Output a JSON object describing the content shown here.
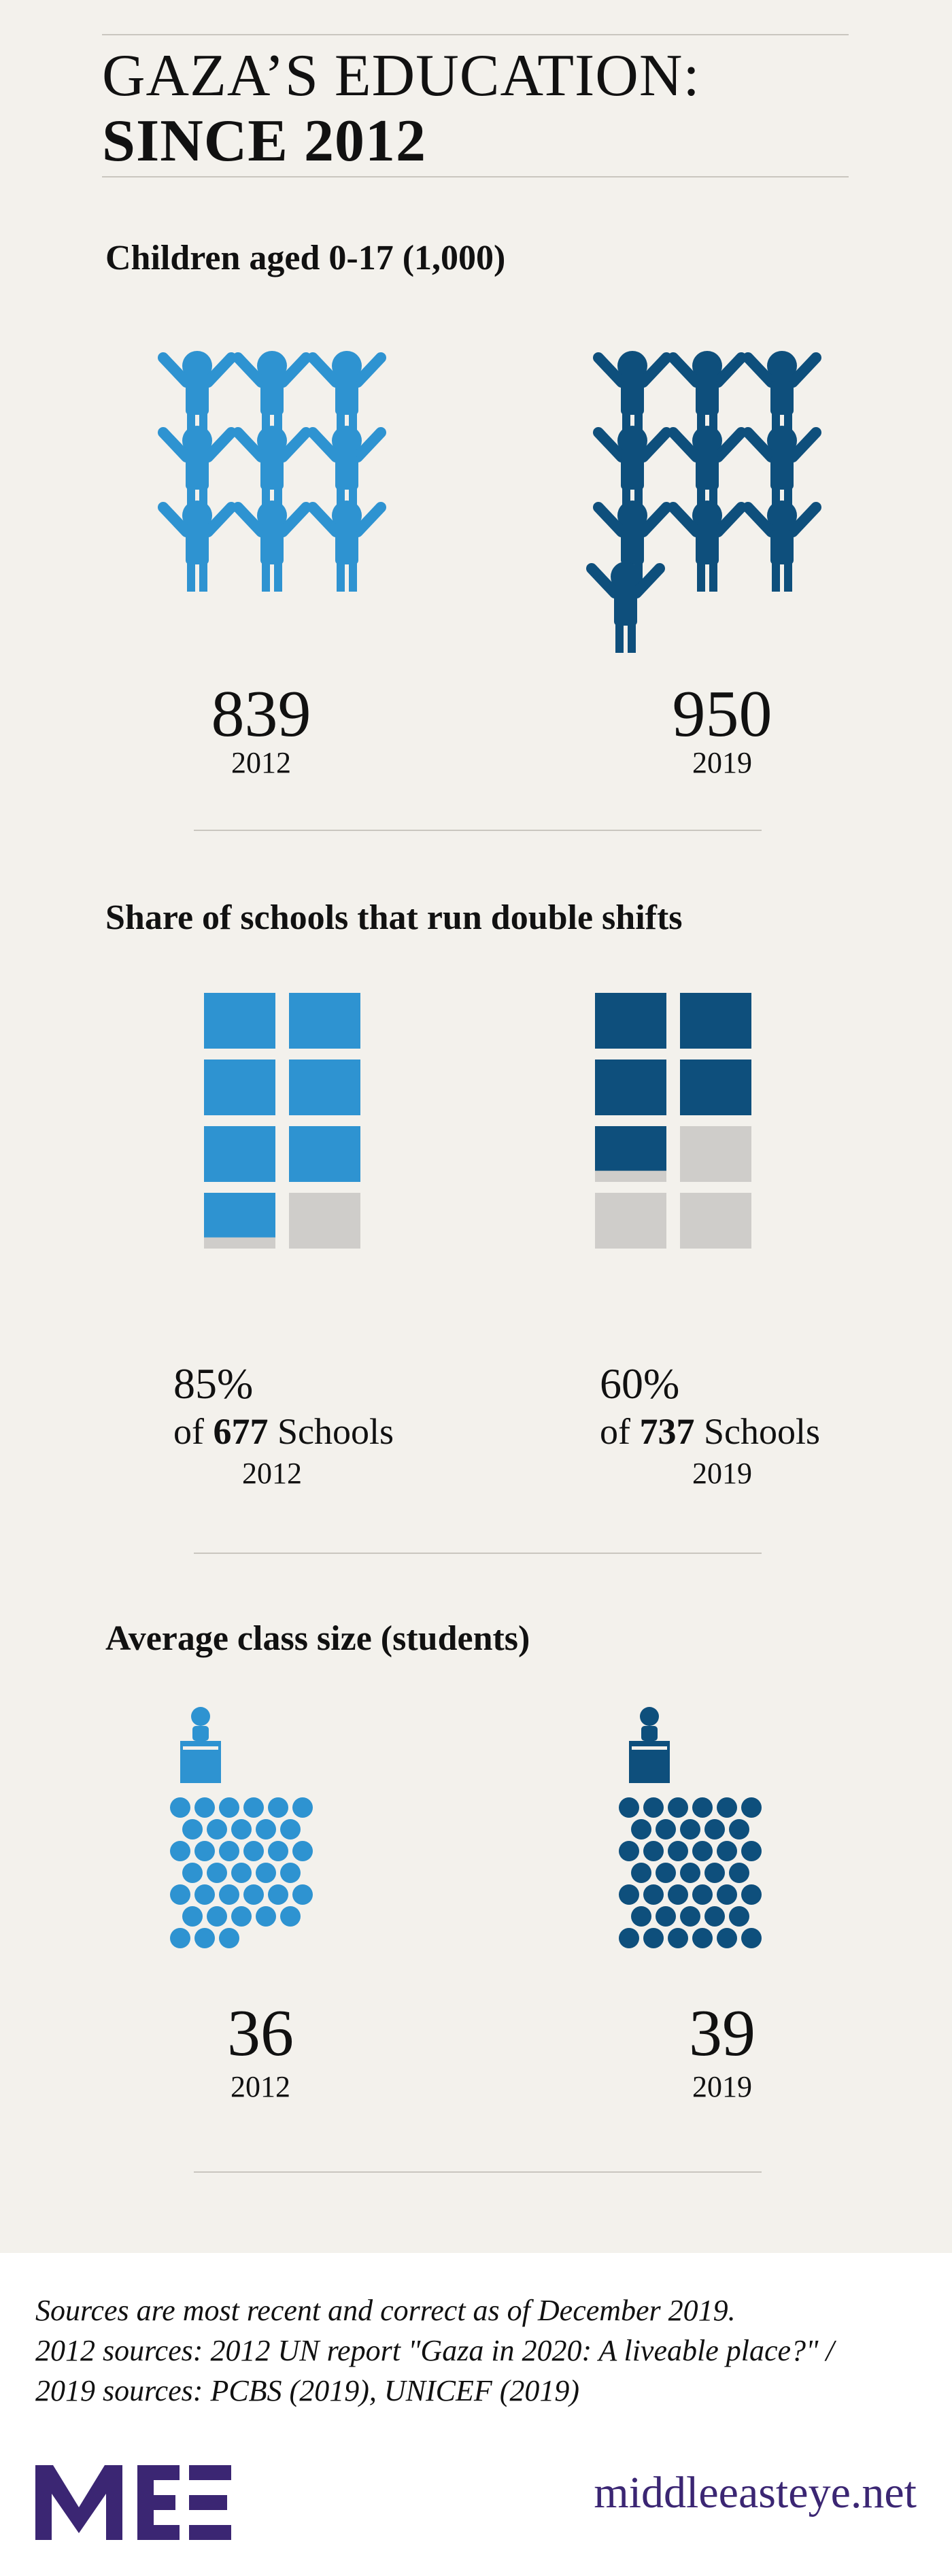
{
  "title": {
    "line1": "GAZA’S EDUCATION:",
    "line2": "SINCE 2012"
  },
  "colors": {
    "light_blue": "#2e93d1",
    "dark_blue": "#0e4f7c",
    "grey": "#cfcdca",
    "panel": "#f3f1ec",
    "brand_purple": "#3b2673"
  },
  "sections": {
    "children": {
      "heading": "Children aged 0-17 (1,000)",
      "icon": "child-figure-icon",
      "left": {
        "value": "839",
        "year": "2012"
      },
      "right": {
        "value": "950",
        "year": "2019"
      }
    },
    "schools": {
      "heading": "Share of schools that run double shifts",
      "left": {
        "percent": "85%",
        "of_prefix": "of",
        "count": "677",
        "suffix": "Schools",
        "year": "2012",
        "share": 0.85
      },
      "right": {
        "percent": "60%",
        "of_prefix": "of",
        "count": "737",
        "suffix": "Schools",
        "year": "2019",
        "share": 0.6
      }
    },
    "class_size": {
      "heading": "Average class size (students)",
      "icon": "teacher-podium-icon",
      "left": {
        "value": "36",
        "year": "2012",
        "students": 36
      },
      "right": {
        "value": "39",
        "year": "2019",
        "students": 39
      }
    }
  },
  "sources": {
    "line1": "Sources are most recent and correct as of December 2019.",
    "line2": "2012 sources: 2012 UN report \"Gaza in 2020: A liveable place?\" /",
    "line3": "2019 sources: PCBS (2019), UNICEF (2019)"
  },
  "footer": {
    "logo": "MEE",
    "site": "middleeasteye.net"
  }
}
